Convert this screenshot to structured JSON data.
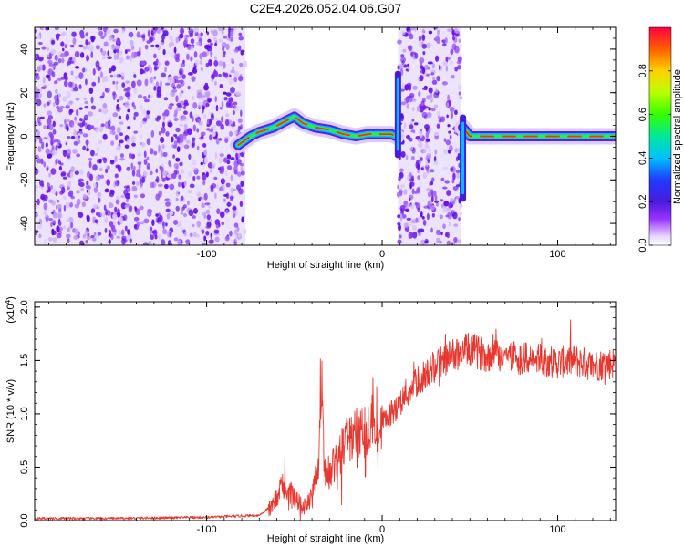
{
  "title": "C2E4.2026.052.04.06.G07",
  "chart_data": [
    {
      "type": "heatmap",
      "name": "spectrogram",
      "xlabel": "Height of straight line (km)",
      "ylabel": "Frequency (Hz)",
      "xlim": [
        -198,
        133
      ],
      "ylim": [
        -50,
        50
      ],
      "xticks": [
        -100,
        0,
        100
      ],
      "yticks": [
        -40,
        -20,
        0,
        20,
        40
      ],
      "colorbar": {
        "label": "Normalized spectral amplitude",
        "range": [
          0,
          1
        ],
        "ticks": [
          "0.0",
          "0.2",
          "0.4",
          "0.6",
          "0.8"
        ]
      },
      "noise_regions": [
        [
          -198,
          -78
        ],
        [
          9,
          45
        ]
      ],
      "ridge": [
        {
          "x": -82,
          "y": -4
        },
        {
          "x": -75,
          "y": 0
        },
        {
          "x": -70,
          "y": 2
        },
        {
          "x": -62,
          "y": 4
        },
        {
          "x": -55,
          "y": 7
        },
        {
          "x": -50,
          "y": 9
        },
        {
          "x": -45,
          "y": 6
        },
        {
          "x": -38,
          "y": 4
        },
        {
          "x": -30,
          "y": 3
        },
        {
          "x": -22,
          "y": 1
        },
        {
          "x": -15,
          "y": 0
        },
        {
          "x": -8,
          "y": 1
        },
        {
          "x": -2,
          "y": 1
        },
        {
          "x": 5,
          "y": 1
        },
        {
          "x": 8,
          "y": 0
        },
        {
          "x": 46,
          "y": 4
        },
        {
          "x": 50,
          "y": 0
        },
        {
          "x": 60,
          "y": 0
        },
        {
          "x": 80,
          "y": 0
        },
        {
          "x": 100,
          "y": 0
        },
        {
          "x": 133,
          "y": 0
        }
      ],
      "spikes": [
        {
          "x": 9,
          "y_min": -10,
          "y_max": 30
        },
        {
          "x": 46,
          "y_min": -30,
          "y_max": 10
        }
      ]
    },
    {
      "type": "line",
      "name": "snr",
      "xlabel": "Height of straight line (km)",
      "ylabel": "SNR (10 * v/v)",
      "ylabel_multiplier_base": "(x10",
      "ylabel_multiplier_exp": "4",
      "ylabel_multiplier_close": ")",
      "xlim": [
        -198,
        133
      ],
      "ylim": [
        0,
        2.05
      ],
      "xticks": [
        -100,
        0,
        100
      ],
      "yticks": [
        "0.0",
        "0.5",
        "1.0",
        "1.5",
        "2.0"
      ],
      "color": "#e8372e",
      "series": [
        {
          "name": "SNR",
          "x": [
            -198,
            -150,
            -100,
            -70,
            -62,
            -57,
            -52,
            -45,
            -40,
            -36,
            -34,
            -33,
            -30,
            -25,
            -20,
            -10,
            0,
            10,
            20,
            30,
            40,
            50,
            60,
            70,
            80,
            90,
            100,
            110,
            120,
            133
          ],
          "values": [
            0.02,
            0.02,
            0.03,
            0.05,
            0.15,
            0.35,
            0.25,
            0.12,
            0.2,
            0.6,
            1.3,
            0.5,
            0.45,
            0.6,
            0.75,
            0.85,
            0.9,
            1.1,
            1.3,
            1.45,
            1.55,
            1.6,
            1.55,
            1.55,
            1.52,
            1.5,
            1.48,
            1.5,
            1.45,
            1.48
          ]
        }
      ]
    }
  ]
}
